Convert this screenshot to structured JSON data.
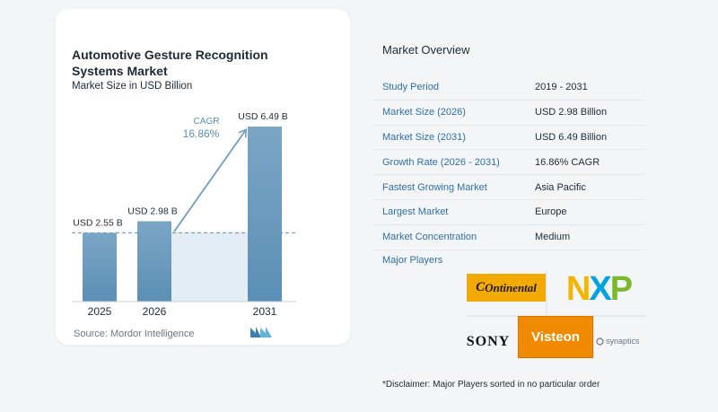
{
  "left_panel": {
    "title": "Automotive Gesture Recognition Systems Market",
    "subtitle": "Market Size in USD Billion",
    "source": "Source:  Mordor Intelligence",
    "cagr_label": "CAGR",
    "cagr_value": "16.86%"
  },
  "chart_data": {
    "type": "bar",
    "title": "Automotive Gesture Recognition Systems Market",
    "subtitle": "Market Size in USD Billion",
    "categories": [
      "2025",
      "2026",
      "2031"
    ],
    "values": [
      2.55,
      2.98,
      6.49
    ],
    "data_labels": [
      "USD 2.55 B",
      "USD 2.98 B",
      "USD 6.49 B"
    ],
    "ylabel": "",
    "xlabel": "",
    "ylim": [
      0,
      6.49
    ],
    "grid": false,
    "colors": {
      "bar": "#5b8fb5",
      "bar_light": "#7ba6c6",
      "arrow": "#6f9cc0",
      "dashed": "#5b8fb5",
      "fill": "#e4edf5"
    }
  },
  "overview": {
    "title": "Market Overview",
    "rows": [
      {
        "key": "Study Period",
        "value": "2019 - 2031"
      },
      {
        "key": "Market Size (2026)",
        "value": "USD 2.98 Billion"
      },
      {
        "key": "Market Size (2031)",
        "value": "USD 6.49 Billion"
      },
      {
        "key": "Growth Rate (2026 - 2031)",
        "value": "16.86% CAGR"
      },
      {
        "key": "Fastest Growing Market",
        "value": "Asia Pacific"
      },
      {
        "key": "Largest Market",
        "value": "Europe"
      },
      {
        "key": "Market Concentration",
        "value": "Medium"
      }
    ],
    "players_title": "Major Players",
    "players": {
      "continental": "Ontinental",
      "nxp_n": "N",
      "nxp_x": "X",
      "nxp_p": "P",
      "sony": "SONY",
      "visteon": "Visteon",
      "synaptics": "synaptics"
    },
    "disclaimer": "*Disclaimer: Major Players sorted in no particular order"
  }
}
